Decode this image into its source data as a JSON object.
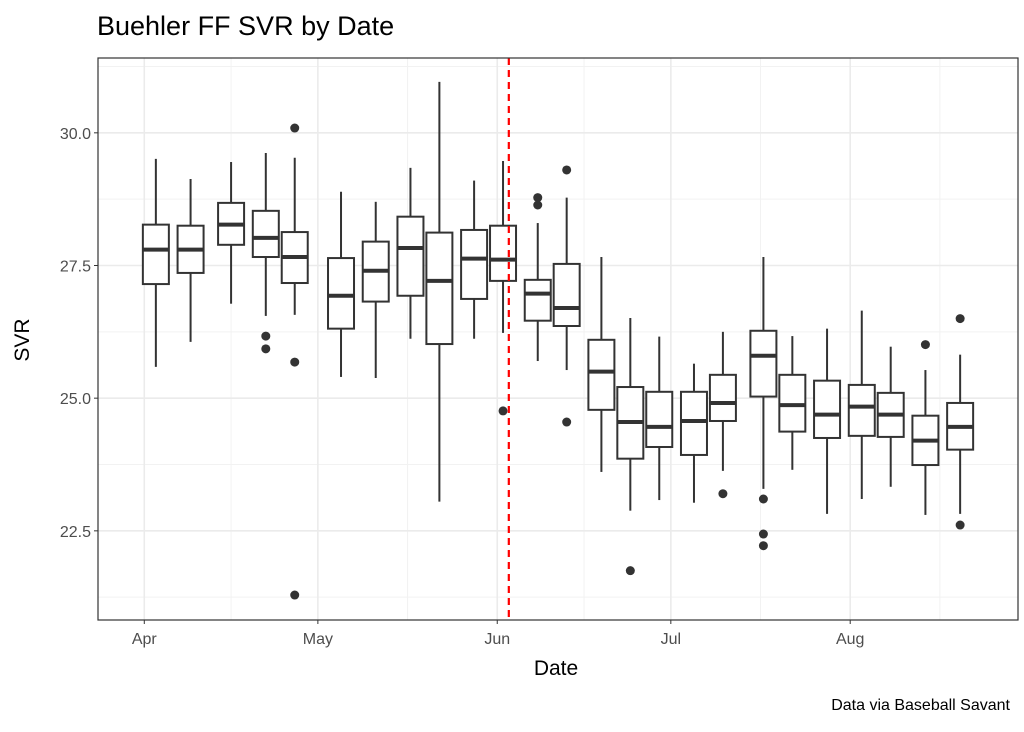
{
  "chart_data": {
    "type": "boxplot",
    "title": "Buehler FF SVR by Date",
    "xlabel": "Date",
    "ylabel": "SVR",
    "caption": "Data via Baseball Savant",
    "xlim": [
      "2019-03-24",
      "2019-08-30"
    ],
    "ylim": [
      20.82,
      31.41
    ],
    "x_ticks": [
      {
        "date": "2019-04-01",
        "label": "Apr"
      },
      {
        "date": "2019-05-01",
        "label": "May"
      },
      {
        "date": "2019-06-01",
        "label": "Jun"
      },
      {
        "date": "2019-07-01",
        "label": "Jul"
      },
      {
        "date": "2019-08-01",
        "label": "Aug"
      }
    ],
    "y_ticks": [
      {
        "value": 22.5,
        "label": "22.5"
      },
      {
        "value": 25.0,
        "label": "25.0"
      },
      {
        "value": 27.5,
        "label": "27.5"
      },
      {
        "value": 30.0,
        "label": "30.0"
      }
    ],
    "grid": true,
    "theme": "bw",
    "vline": {
      "date": "2019-06-03",
      "color": "#ff0000",
      "style": "dashed"
    },
    "box_color": "#333333",
    "boxes": [
      {
        "date": "2019-04-03",
        "lo": 25.59,
        "q1": 27.15,
        "med": 27.8,
        "q3": 28.27,
        "hi": 29.51,
        "outliers": []
      },
      {
        "date": "2019-04-09",
        "lo": 26.06,
        "q1": 27.36,
        "med": 27.8,
        "q3": 28.25,
        "hi": 29.13,
        "outliers": []
      },
      {
        "date": "2019-04-16",
        "lo": 26.78,
        "q1": 27.89,
        "med": 28.27,
        "q3": 28.68,
        "hi": 29.45,
        "outliers": []
      },
      {
        "date": "2019-04-22",
        "lo": 26.55,
        "q1": 27.66,
        "med": 28.02,
        "q3": 28.53,
        "hi": 29.62,
        "outliers": [
          26.17,
          25.93
        ]
      },
      {
        "date": "2019-04-27",
        "lo": 26.57,
        "q1": 27.17,
        "med": 27.66,
        "q3": 28.13,
        "hi": 29.53,
        "outliers": [
          30.09,
          25.68,
          21.29
        ]
      },
      {
        "date": "2019-05-05",
        "lo": 25.4,
        "q1": 26.31,
        "med": 26.93,
        "q3": 27.64,
        "hi": 28.89,
        "outliers": []
      },
      {
        "date": "2019-05-11",
        "lo": 25.38,
        "q1": 26.82,
        "med": 27.4,
        "q3": 27.95,
        "hi": 28.7,
        "outliers": []
      },
      {
        "date": "2019-05-17",
        "lo": 26.12,
        "q1": 26.93,
        "med": 27.83,
        "q3": 28.42,
        "hi": 29.34,
        "outliers": []
      },
      {
        "date": "2019-05-22",
        "lo": 23.05,
        "q1": 26.02,
        "med": 27.21,
        "q3": 28.12,
        "hi": 30.96,
        "outliers": []
      },
      {
        "date": "2019-05-28",
        "lo": 26.12,
        "q1": 26.87,
        "med": 27.63,
        "q3": 28.17,
        "hi": 29.1,
        "outliers": []
      },
      {
        "date": "2019-06-02",
        "lo": 26.23,
        "q1": 27.21,
        "med": 27.61,
        "q3": 28.25,
        "hi": 29.47,
        "outliers": [
          24.76
        ]
      },
      {
        "date": "2019-06-08",
        "lo": 25.7,
        "q1": 26.46,
        "med": 26.97,
        "q3": 27.23,
        "hi": 28.3,
        "outliers": [
          28.78,
          28.64
        ]
      },
      {
        "date": "2019-06-13",
        "lo": 25.53,
        "q1": 26.36,
        "med": 26.7,
        "q3": 27.53,
        "hi": 28.78,
        "outliers": [
          29.3,
          24.55
        ]
      },
      {
        "date": "2019-06-19",
        "lo": 23.61,
        "q1": 24.78,
        "med": 25.5,
        "q3": 26.1,
        "hi": 27.66,
        "outliers": []
      },
      {
        "date": "2019-06-24",
        "lo": 22.88,
        "q1": 23.86,
        "med": 24.55,
        "q3": 25.21,
        "hi": 26.51,
        "outliers": [
          21.75
        ]
      },
      {
        "date": "2019-06-29",
        "lo": 23.08,
        "q1": 24.08,
        "med": 24.46,
        "q3": 25.12,
        "hi": 26.16,
        "outliers": []
      },
      {
        "date": "2019-07-05",
        "lo": 23.03,
        "q1": 23.93,
        "med": 24.57,
        "q3": 25.12,
        "hi": 25.65,
        "outliers": []
      },
      {
        "date": "2019-07-10",
        "lo": 23.63,
        "q1": 24.57,
        "med": 24.91,
        "q3": 25.44,
        "hi": 26.25,
        "outliers": [
          23.2
        ]
      },
      {
        "date": "2019-07-17",
        "lo": 23.29,
        "q1": 25.03,
        "med": 25.8,
        "q3": 26.27,
        "hi": 27.66,
        "outliers": [
          23.1,
          22.44,
          22.22
        ]
      },
      {
        "date": "2019-07-22",
        "lo": 23.65,
        "q1": 24.37,
        "med": 24.87,
        "q3": 25.44,
        "hi": 26.17,
        "outliers": []
      },
      {
        "date": "2019-07-28",
        "lo": 22.82,
        "q1": 24.25,
        "med": 24.69,
        "q3": 25.33,
        "hi": 26.31,
        "outliers": []
      },
      {
        "date": "2019-08-03",
        "lo": 23.1,
        "q1": 24.29,
        "med": 24.84,
        "q3": 25.25,
        "hi": 26.65,
        "outliers": []
      },
      {
        "date": "2019-08-08",
        "lo": 23.33,
        "q1": 24.27,
        "med": 24.69,
        "q3": 25.1,
        "hi": 25.97,
        "outliers": []
      },
      {
        "date": "2019-08-14",
        "lo": 22.8,
        "q1": 23.74,
        "med": 24.2,
        "q3": 24.67,
        "hi": 25.53,
        "outliers": [
          26.01
        ]
      },
      {
        "date": "2019-08-20",
        "lo": 22.82,
        "q1": 24.03,
        "med": 24.46,
        "q3": 24.91,
        "hi": 25.82,
        "outliers": [
          26.5,
          22.61
        ]
      }
    ]
  }
}
